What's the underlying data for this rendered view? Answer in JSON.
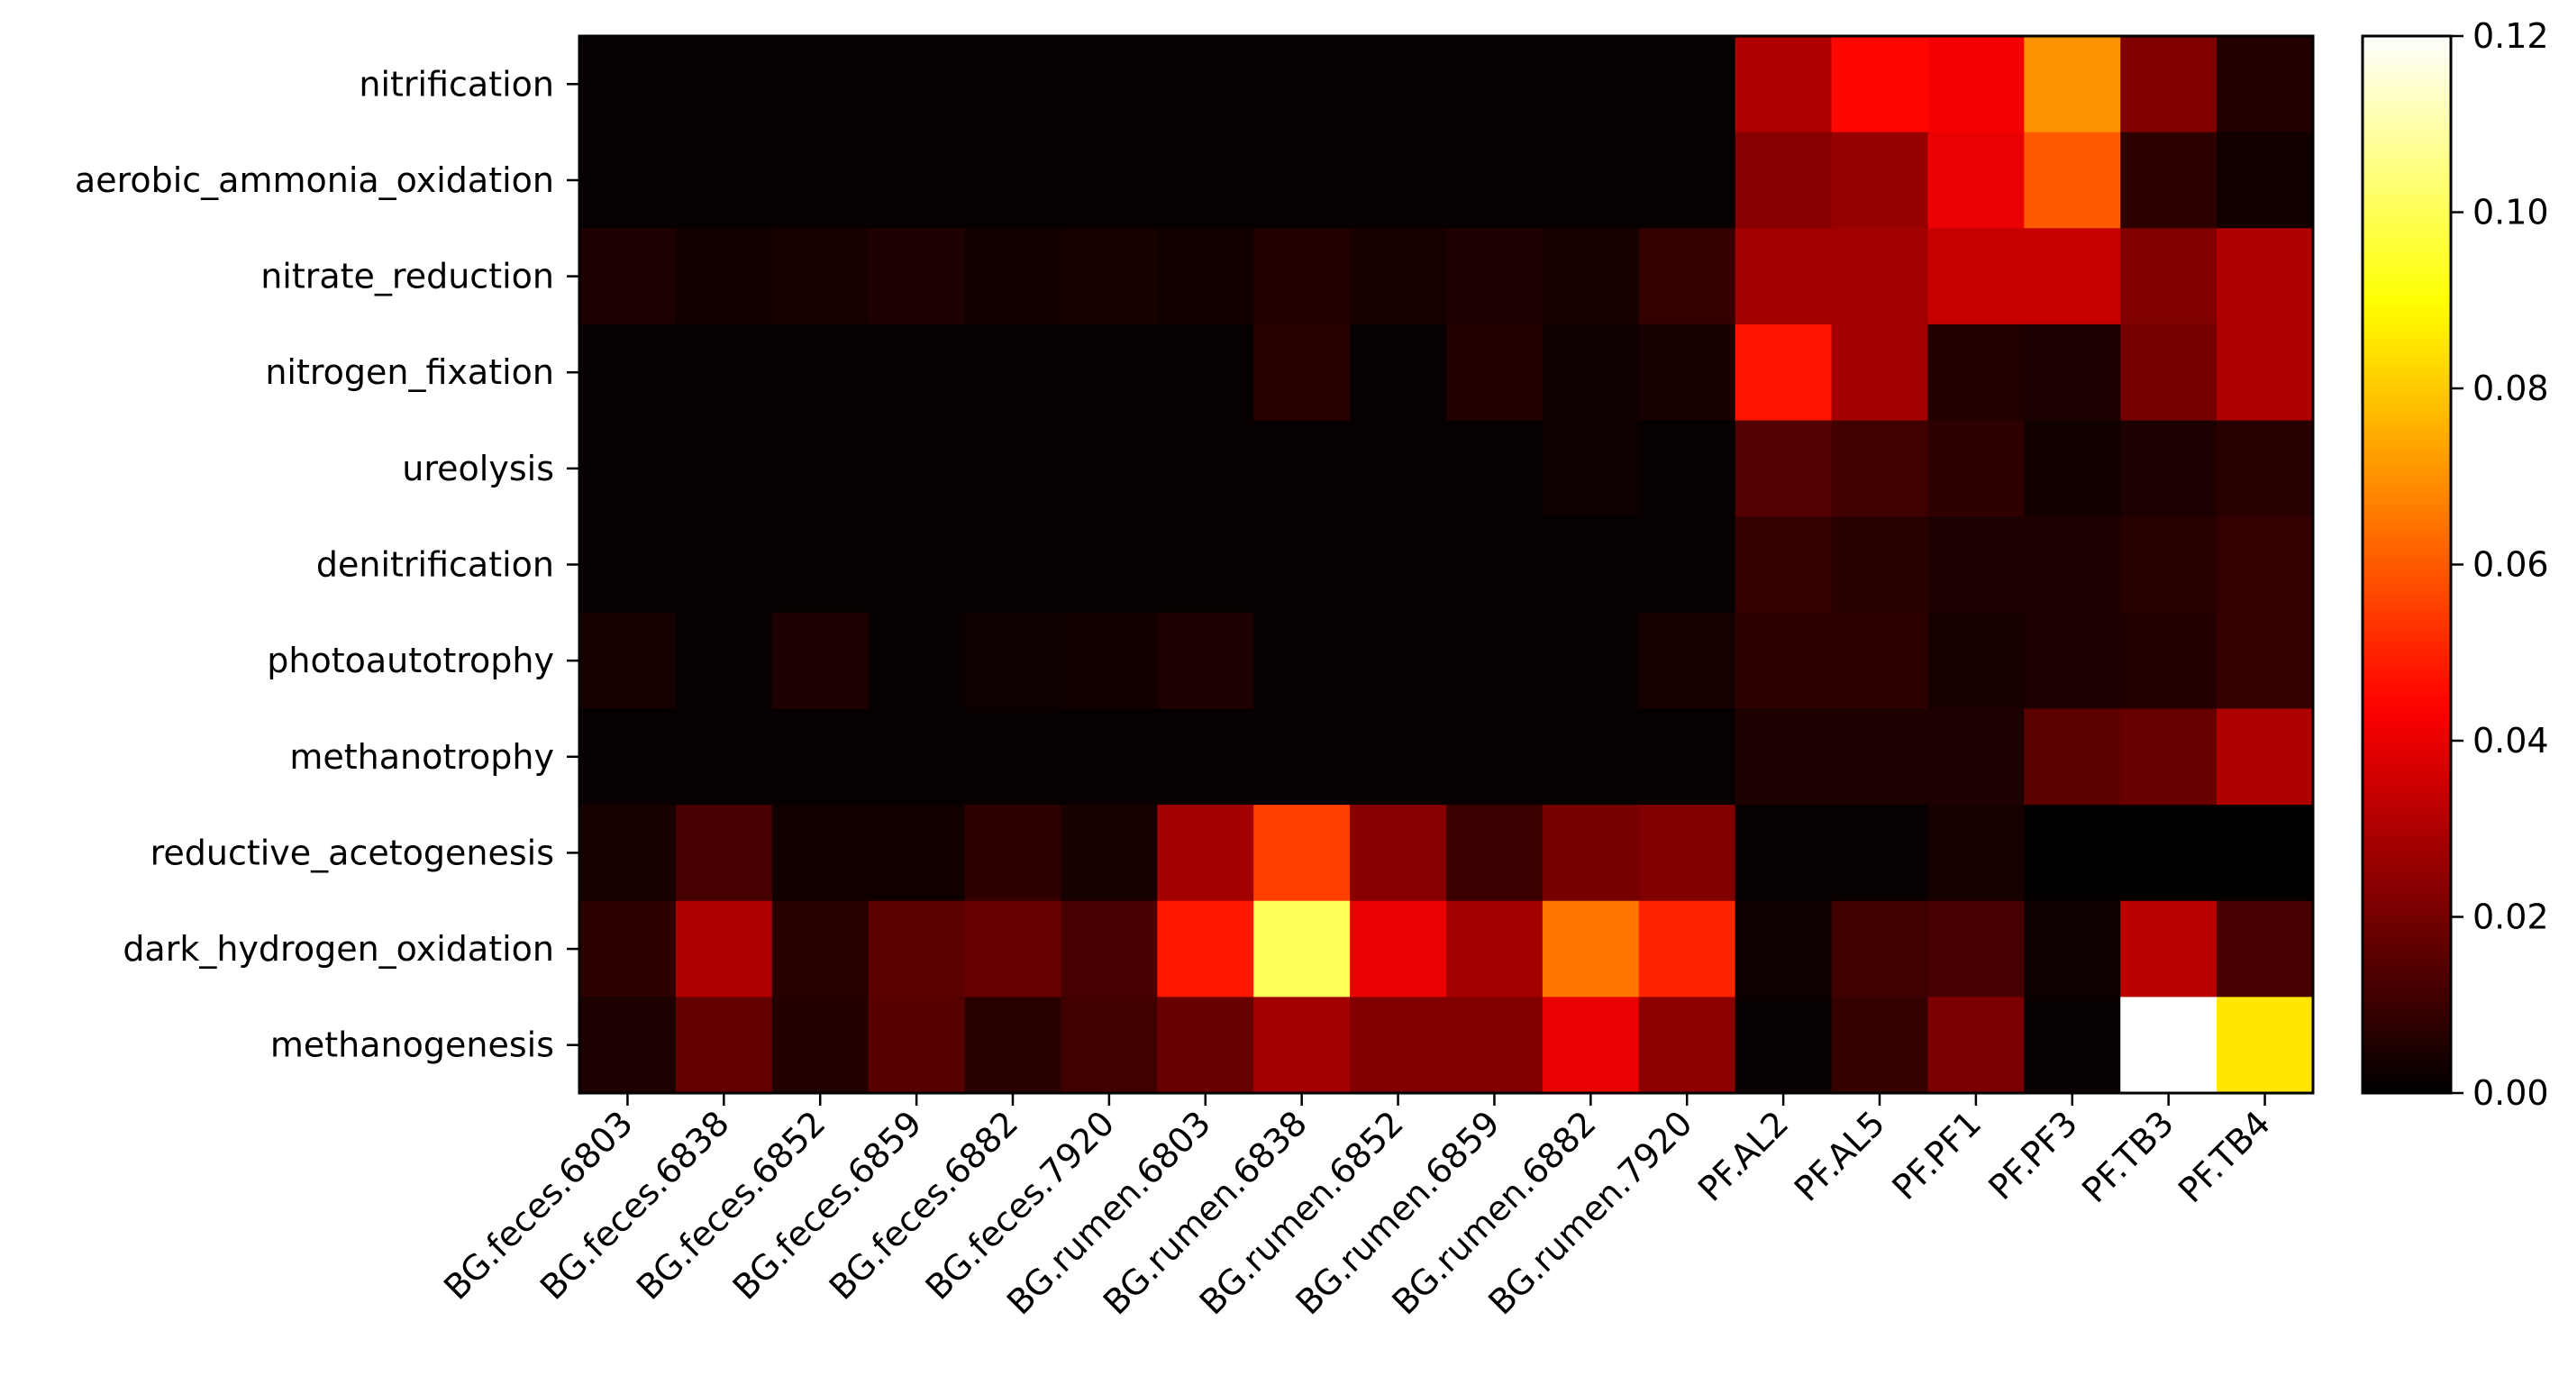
{
  "chart_data": {
    "type": "heatmap",
    "title": "",
    "xlabel": "",
    "ylabel": "",
    "colormap": "hot",
    "grid": false,
    "rows": [
      "nitrification",
      "aerobic_ammonia_oxidation",
      "nitrate_reduction",
      "nitrogen_fixation",
      "ureolysis",
      "denitrification",
      "photoautotrophy",
      "methanotrophy",
      "reductive_acetogenesis",
      "dark_hydrogen_oxidation",
      "methanogenesis"
    ],
    "columns": [
      "BG.feces.6803",
      "BG.feces.6838",
      "BG.feces.6852",
      "BG.feces.6859",
      "BG.feces.6882",
      "BG.feces.7920",
      "BG.rumen.6803",
      "BG.rumen.6838",
      "BG.rumen.6852",
      "BG.rumen.6859",
      "BG.rumen.6882",
      "BG.rumen.7920",
      "PF.AL2",
      "PF.AL5",
      "PF.PF1",
      "PF.PF3",
      "PF.TB3",
      "PF.TB4"
    ],
    "values": [
      [
        0.001,
        0.001,
        0.001,
        0.001,
        0.001,
        0.001,
        0.001,
        0.001,
        0.001,
        0.001,
        0.001,
        0.001,
        0.03,
        0.045,
        0.042,
        0.07,
        0.022,
        0.006
      ],
      [
        0.001,
        0.001,
        0.001,
        0.001,
        0.001,
        0.001,
        0.001,
        0.001,
        0.001,
        0.001,
        0.001,
        0.001,
        0.023,
        0.026,
        0.04,
        0.06,
        0.008,
        0.003
      ],
      [
        0.005,
        0.003,
        0.004,
        0.005,
        0.003,
        0.004,
        0.003,
        0.006,
        0.004,
        0.005,
        0.004,
        0.009,
        0.028,
        0.028,
        0.034,
        0.034,
        0.022,
        0.03
      ],
      [
        0.001,
        0.001,
        0.001,
        0.001,
        0.001,
        0.001,
        0.001,
        0.007,
        0.001,
        0.006,
        0.002,
        0.004,
        0.047,
        0.028,
        0.006,
        0.005,
        0.02,
        0.03
      ],
      [
        0.001,
        0.001,
        0.001,
        0.001,
        0.001,
        0.001,
        0.001,
        0.001,
        0.001,
        0.001,
        0.002,
        0.001,
        0.014,
        0.011,
        0.008,
        0.003,
        0.005,
        0.007
      ],
      [
        0.001,
        0.001,
        0.001,
        0.001,
        0.001,
        0.001,
        0.001,
        0.001,
        0.001,
        0.001,
        0.001,
        0.001,
        0.009,
        0.007,
        0.005,
        0.005,
        0.007,
        0.009
      ],
      [
        0.004,
        0.001,
        0.005,
        0.001,
        0.002,
        0.003,
        0.005,
        0.001,
        0.001,
        0.001,
        0.001,
        0.004,
        0.008,
        0.008,
        0.004,
        0.005,
        0.006,
        0.009
      ],
      [
        0.001,
        0.001,
        0.001,
        0.001,
        0.001,
        0.001,
        0.001,
        0.001,
        0.001,
        0.001,
        0.001,
        0.001,
        0.005,
        0.005,
        0.005,
        0.016,
        0.018,
        0.03
      ],
      [
        0.004,
        0.012,
        0.003,
        0.003,
        0.008,
        0.004,
        0.028,
        0.055,
        0.023,
        0.01,
        0.02,
        0.022,
        0.001,
        0.001,
        0.004,
        0.0005,
        0.0005,
        0.0005
      ],
      [
        0.008,
        0.03,
        0.007,
        0.016,
        0.018,
        0.012,
        0.048,
        0.1,
        0.04,
        0.028,
        0.065,
        0.05,
        0.002,
        0.011,
        0.012,
        0.002,
        0.032,
        0.012
      ],
      [
        0.005,
        0.017,
        0.006,
        0.015,
        0.007,
        0.011,
        0.018,
        0.028,
        0.022,
        0.022,
        0.04,
        0.024,
        0.001,
        0.009,
        0.021,
        0.001,
        0.12,
        0.085
      ]
    ],
    "colorbar": {
      "range": [
        0.0,
        0.12
      ],
      "ticks": [
        0.0,
        0.02,
        0.04,
        0.06,
        0.08,
        0.1,
        0.12
      ],
      "tick_labels": [
        "0.00",
        "0.02",
        "0.04",
        "0.06",
        "0.08",
        "0.10",
        "0.12"
      ]
    }
  }
}
